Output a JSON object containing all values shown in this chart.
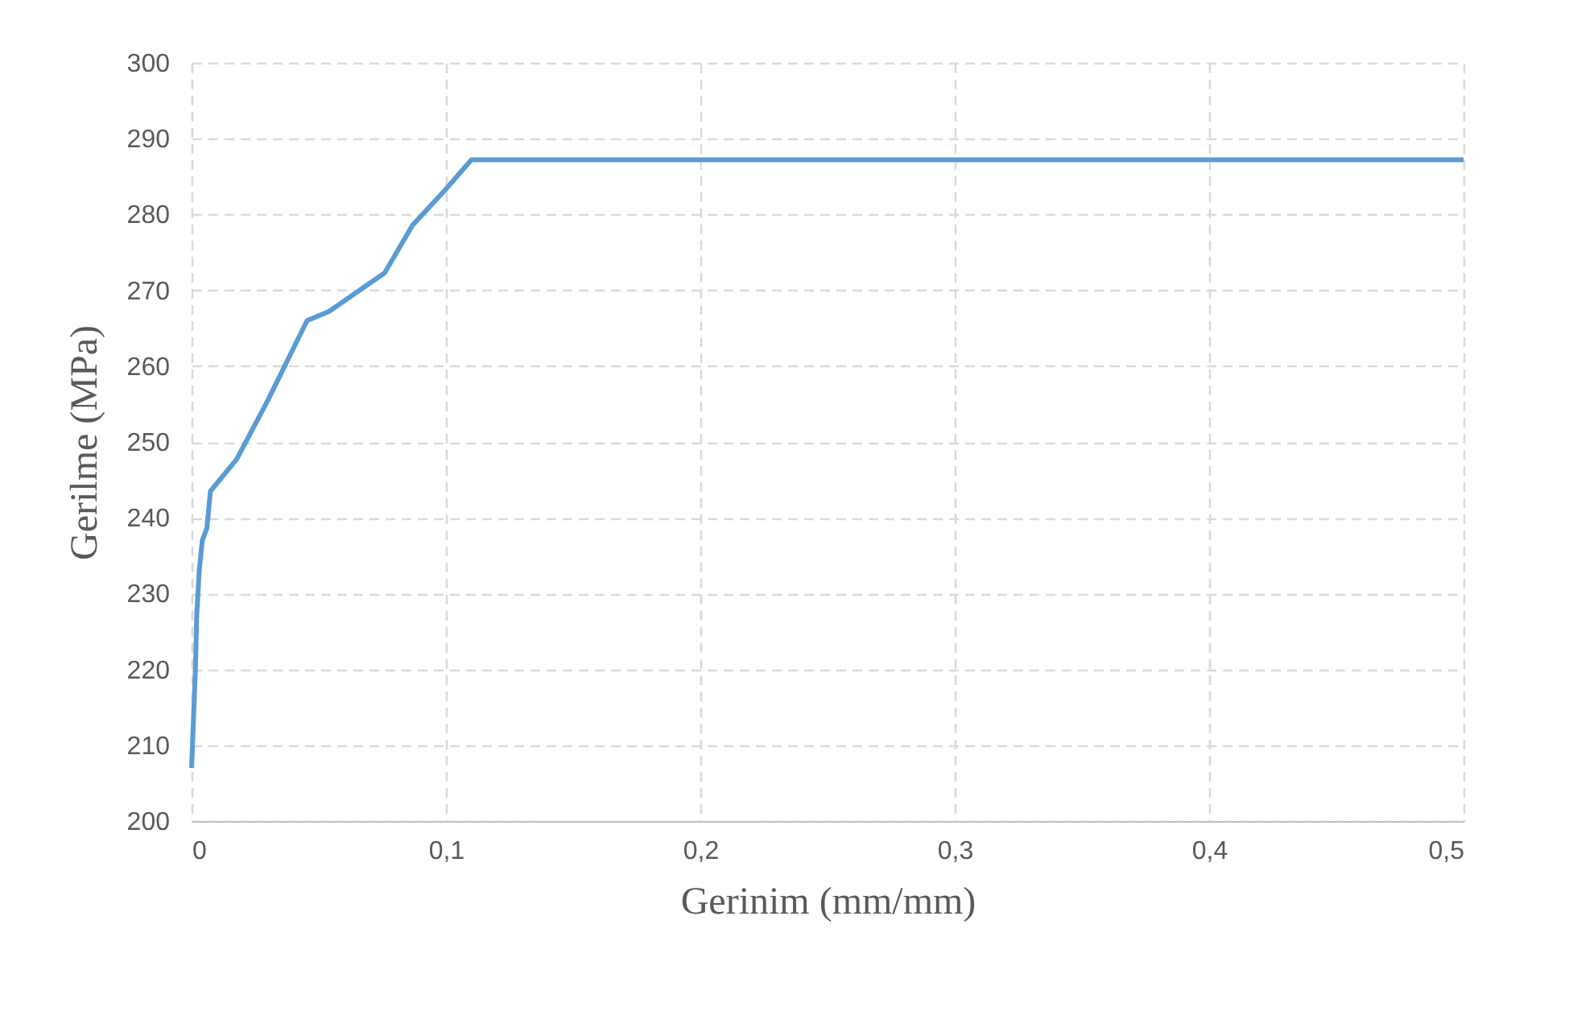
{
  "chart_data": {
    "type": "line",
    "xlabel": "Gerinim (mm/mm)",
    "ylabel": "Gerilme (MPa)",
    "x": [
      0,
      0.0015,
      0.002,
      0.003,
      0.0042,
      0.006,
      0.0074,
      0.0177,
      0.03,
      0.0454,
      0.054,
      0.0759,
      0.0869,
      0.0996,
      0.11,
      0.5
    ],
    "series": [
      {
        "color": "#5b9bd5",
        "values": [
          207,
          220,
          227,
          233,
          237,
          238.6,
          243.5,
          247.7,
          255.5,
          266,
          267.2,
          272.3,
          278.6,
          283.2,
          287.2,
          287.2
        ]
      }
    ],
    "xlim": [
      0,
      0.5
    ],
    "xticks": [
      {
        "value": 0,
        "label": "0"
      },
      {
        "value": 0.1,
        "label": "0,1"
      },
      {
        "value": 0.2,
        "label": "0,2"
      },
      {
        "value": 0.3,
        "label": "0,3"
      },
      {
        "value": 0.4,
        "label": "0,4"
      },
      {
        "value": 0.5,
        "label": "0,5"
      }
    ],
    "ylim": [
      200,
      300
    ],
    "yticks": [
      200,
      210,
      220,
      230,
      240,
      250,
      260,
      270,
      280,
      290,
      300
    ],
    "grid": true,
    "marker": "none",
    "line_style": "solid"
  }
}
